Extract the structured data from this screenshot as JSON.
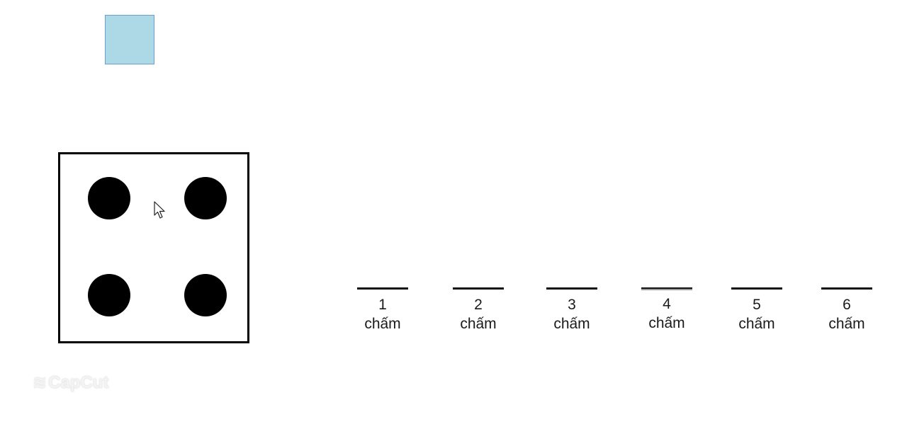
{
  "shapes": {
    "square_color": "#add8e6",
    "die_pips": 4
  },
  "options": [
    {
      "number": "1",
      "unit": "chấm"
    },
    {
      "number": "2",
      "unit": "chấm"
    },
    {
      "number": "3",
      "unit": "chấm"
    },
    {
      "number": "4",
      "unit": "chấm"
    },
    {
      "number": "5",
      "unit": "chấm"
    },
    {
      "number": "6",
      "unit": "chấm"
    }
  ],
  "icons": {
    "cursor": "mouse-pointer-icon",
    "watermark_logo": "capcut-logo-icon"
  },
  "watermark": {
    "logo_text": "≋",
    "text": "CapCut"
  }
}
